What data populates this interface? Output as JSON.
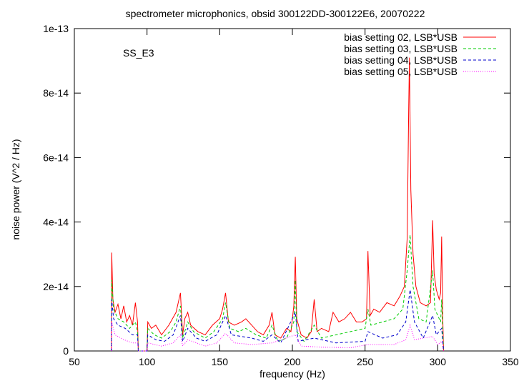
{
  "chart_data": {
    "type": "line",
    "title": "spectrometer microphonics, obsid 300122DD-300122E6, 20070222",
    "xlabel": "frequency (Hz)",
    "ylabel": "noise power (V^2 / Hz)",
    "xlim": [
      50,
      350
    ],
    "ylim": [
      0,
      1e-13
    ],
    "x_ticks": [
      50,
      100,
      150,
      200,
      250,
      300,
      350
    ],
    "x_tick_labels": [
      "50",
      "100",
      "150",
      "200",
      "250",
      "300",
      "350"
    ],
    "y_ticks": [
      0,
      2e-14,
      4e-14,
      6e-14,
      8e-14,
      1e-13
    ],
    "y_tick_labels": [
      "0",
      "2e-14",
      "4e-14",
      "6e-14",
      "8e-14",
      "1e-13"
    ],
    "grid": false,
    "legend_position": "top-right",
    "annotation": "SS_E3",
    "series": [
      {
        "name": "bias setting 02, LSB*USB",
        "color": "#ff0000",
        "dash": "solid",
        "points": [
          [
            75.5,
            0
          ],
          [
            75.7,
            3.05e-14
          ],
          [
            76.5,
            1.6e-14
          ],
          [
            78,
            1.2e-14
          ],
          [
            80,
            1.45e-14
          ],
          [
            82,
            1e-14
          ],
          [
            84,
            1.4e-14
          ],
          [
            86,
            9e-15
          ],
          [
            88,
            1.1e-14
          ],
          [
            90,
            8e-15
          ],
          [
            92,
            1.5e-14
          ],
          [
            93.5,
            9e-15
          ],
          [
            94,
            0
          ],
          [
            100,
            0
          ],
          [
            100.5,
            9e-15
          ],
          [
            103,
            7e-15
          ],
          [
            106,
            8e-15
          ],
          [
            110,
            5e-15
          ],
          [
            115,
            8e-15
          ],
          [
            120,
            1.2e-14
          ],
          [
            123,
            1.8e-14
          ],
          [
            124.5,
            5e-15
          ],
          [
            126,
            1e-14
          ],
          [
            128,
            1.2e-14
          ],
          [
            130,
            8e-15
          ],
          [
            135,
            6e-15
          ],
          [
            140,
            5e-15
          ],
          [
            145,
            8e-15
          ],
          [
            150,
            1e-14
          ],
          [
            152,
            1.3e-14
          ],
          [
            154,
            1.8e-14
          ],
          [
            156,
            9e-15
          ],
          [
            160,
            8e-15
          ],
          [
            165,
            9e-15
          ],
          [
            168,
            1e-14
          ],
          [
            172,
            8e-15
          ],
          [
            176,
            6e-15
          ],
          [
            180,
            5e-15
          ],
          [
            184,
            8e-15
          ],
          [
            186,
            1.2e-14
          ],
          [
            188,
            5e-15
          ],
          [
            192,
            4e-15
          ],
          [
            196,
            7e-15
          ],
          [
            199,
            6e-15
          ],
          [
            201,
            1.4e-14
          ],
          [
            202,
            2.92e-14
          ],
          [
            203,
            1e-14
          ],
          [
            206,
            5e-15
          ],
          [
            210,
            4e-15
          ],
          [
            213,
            6e-15
          ],
          [
            215,
            1.6e-14
          ],
          [
            217,
            6e-15
          ],
          [
            220,
            7e-15
          ],
          [
            225,
            6e-15
          ],
          [
            228,
            1.2e-14
          ],
          [
            232,
            9e-15
          ],
          [
            236,
            1e-14
          ],
          [
            240,
            1.2e-14
          ],
          [
            244,
            9e-15
          ],
          [
            248,
            9e-15
          ],
          [
            251,
            1e-14
          ],
          [
            252,
            3.1e-14
          ],
          [
            253.5,
            1.1e-14
          ],
          [
            256,
            1.3e-14
          ],
          [
            260,
            1.2e-14
          ],
          [
            265,
            1.5e-14
          ],
          [
            270,
            1.4e-14
          ],
          [
            274,
            1.7e-14
          ],
          [
            277,
            2e-14
          ],
          [
            279,
            3.5e-14
          ],
          [
            280,
            7.5e-14
          ],
          [
            280.5,
            9.1e-14
          ],
          [
            281.5,
            5e-14
          ],
          [
            283,
            3e-14
          ],
          [
            285,
            2e-14
          ],
          [
            288,
            1.5e-14
          ],
          [
            292,
            1.4e-14
          ],
          [
            295,
            1.5e-14
          ],
          [
            296.5,
            4.05e-14
          ],
          [
            297.5,
            2.4e-14
          ],
          [
            299,
            1.9e-14
          ],
          [
            301,
            1.6e-14
          ],
          [
            302,
            1.8e-14
          ],
          [
            302.7,
            3.55e-14
          ],
          [
            303.5,
            1e-14
          ],
          [
            304,
            0
          ]
        ]
      },
      {
        "name": "bias setting 03, LSB*USB",
        "color": "#00cc00",
        "dash": "dashed",
        "points": [
          [
            75.5,
            0
          ],
          [
            75.7,
            2.2e-14
          ],
          [
            77,
            1.3e-14
          ],
          [
            80,
            1e-14
          ],
          [
            84,
            9e-15
          ],
          [
            88,
            7e-15
          ],
          [
            92,
            9e-15
          ],
          [
            93.5,
            6e-15
          ],
          [
            94,
            0
          ],
          [
            100,
            0
          ],
          [
            100.5,
            7e-15
          ],
          [
            105,
            5e-15
          ],
          [
            110,
            4e-15
          ],
          [
            116,
            6e-15
          ],
          [
            120,
            9e-15
          ],
          [
            123,
            1.4e-14
          ],
          [
            124.5,
            4e-15
          ],
          [
            128,
            9e-15
          ],
          [
            132,
            6e-15
          ],
          [
            140,
            4e-15
          ],
          [
            146,
            6e-15
          ],
          [
            152,
            1e-14
          ],
          [
            154,
            1.5e-14
          ],
          [
            157,
            7e-15
          ],
          [
            163,
            6e-15
          ],
          [
            168,
            7e-15
          ],
          [
            175,
            5e-15
          ],
          [
            182,
            4e-15
          ],
          [
            186,
            8e-15
          ],
          [
            190,
            3e-15
          ],
          [
            196,
            4e-15
          ],
          [
            201,
            9e-15
          ],
          [
            202,
            2.2e-14
          ],
          [
            203,
            6e-15
          ],
          [
            208,
            3e-15
          ],
          [
            215,
            8e-15
          ],
          [
            220,
            4e-15
          ],
          [
            230,
            5e-15
          ],
          [
            240,
            6e-15
          ],
          [
            250,
            7e-15
          ],
          [
            252,
            1.3e-14
          ],
          [
            254,
            8e-15
          ],
          [
            262,
            9e-15
          ],
          [
            270,
            1e-14
          ],
          [
            276,
            1.3e-14
          ],
          [
            279,
            2.5e-14
          ],
          [
            281,
            3.6e-14
          ],
          [
            283,
            2e-14
          ],
          [
            287,
            1e-14
          ],
          [
            292,
            9e-15
          ],
          [
            296.5,
            2.5e-14
          ],
          [
            298,
            1.3e-14
          ],
          [
            302,
            9e-15
          ],
          [
            302.7,
            1.6e-14
          ],
          [
            303.5,
            6e-15
          ],
          [
            304,
            0
          ]
        ]
      },
      {
        "name": "bias setting 04, LSB*USB",
        "color": "#0000cc",
        "dash": "dashed",
        "points": [
          [
            75.5,
            0
          ],
          [
            75.7,
            1.6e-14
          ],
          [
            77,
            1e-14
          ],
          [
            80,
            8e-15
          ],
          [
            85,
            7e-15
          ],
          [
            90,
            5e-15
          ],
          [
            93.5,
            5e-15
          ],
          [
            94,
            0
          ],
          [
            100,
            0
          ],
          [
            100.5,
            5e-15
          ],
          [
            106,
            3.5e-15
          ],
          [
            112,
            3e-15
          ],
          [
            118,
            5e-15
          ],
          [
            123,
            1.1e-14
          ],
          [
            124.5,
            3e-15
          ],
          [
            128,
            7e-15
          ],
          [
            134,
            4e-15
          ],
          [
            140,
            3e-15
          ],
          [
            148,
            5e-15
          ],
          [
            154,
            1.1e-14
          ],
          [
            158,
            5e-15
          ],
          [
            165,
            4.5e-15
          ],
          [
            172,
            4e-15
          ],
          [
            180,
            3e-15
          ],
          [
            186,
            5e-15
          ],
          [
            192,
            2.5e-15
          ],
          [
            202,
            1.2e-14
          ],
          [
            204,
            3e-15
          ],
          [
            215,
            4e-15
          ],
          [
            230,
            2.5e-15
          ],
          [
            250,
            3e-15
          ],
          [
            252,
            6e-15
          ],
          [
            262,
            4e-15
          ],
          [
            272,
            5e-15
          ],
          [
            278,
            9e-15
          ],
          [
            281,
            1.9e-14
          ],
          [
            284,
            9e-15
          ],
          [
            290,
            4e-15
          ],
          [
            296.5,
            1.1e-14
          ],
          [
            299,
            5e-15
          ],
          [
            302.7,
            7e-15
          ],
          [
            303.5,
            3e-15
          ],
          [
            304,
            0
          ]
        ]
      },
      {
        "name": "bias setting 05, LSB*USB",
        "color": "#ff00ff",
        "dash": "dotted",
        "points": [
          [
            75.5,
            0
          ],
          [
            75.7,
            9e-15
          ],
          [
            78,
            5e-15
          ],
          [
            84,
            3.5e-15
          ],
          [
            90,
            2.5e-15
          ],
          [
            93.5,
            2.5e-15
          ],
          [
            94,
            0
          ],
          [
            100,
            0
          ],
          [
            100.5,
            2.5e-15
          ],
          [
            110,
            1.5e-15
          ],
          [
            118,
            2.5e-15
          ],
          [
            123,
            5e-15
          ],
          [
            124.5,
            1.5e-15
          ],
          [
            128,
            3.5e-15
          ],
          [
            140,
            1.5e-15
          ],
          [
            148,
            2.5e-15
          ],
          [
            154,
            5.5e-15
          ],
          [
            160,
            2.5e-15
          ],
          [
            172,
            2e-15
          ],
          [
            186,
            2.5e-15
          ],
          [
            202,
            5e-15
          ],
          [
            206,
            1.5e-15
          ],
          [
            220,
            1.2e-15
          ],
          [
            240,
            1e-15
          ],
          [
            252,
            2e-15
          ],
          [
            270,
            2e-15
          ],
          [
            278,
            3.5e-15
          ],
          [
            281,
            8e-15
          ],
          [
            284,
            3.5e-15
          ],
          [
            296.5,
            4.5e-15
          ],
          [
            300,
            2e-15
          ],
          [
            302.7,
            3e-15
          ],
          [
            303.5,
            1e-15
          ],
          [
            304,
            0
          ]
        ]
      }
    ]
  }
}
